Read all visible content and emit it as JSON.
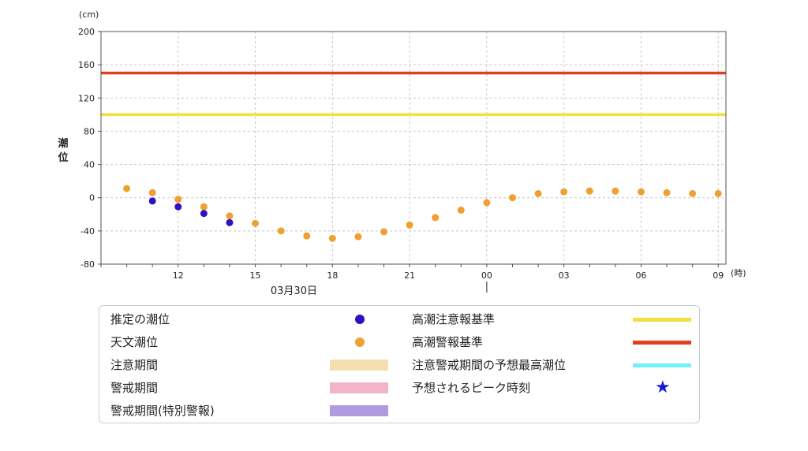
{
  "chart_data": {
    "type": "scatter",
    "y_unit": "(cm)",
    "x_unit": "(時)",
    "ylabel": "潮位",
    "ylim": [
      -80,
      200
    ],
    "yticks": [
      200,
      160,
      120,
      80,
      40,
      0,
      -40,
      -80
    ],
    "y_tick_labels": [
      "200",
      "160",
      "120",
      "80",
      "40",
      "0",
      "-40",
      "-80"
    ],
    "x_hours": [
      10,
      11,
      12,
      13,
      14,
      15,
      16,
      17,
      18,
      19,
      20,
      21,
      22,
      23,
      24,
      25,
      26,
      27,
      28,
      29,
      30,
      31,
      32,
      33
    ],
    "xlim": [
      9,
      33.3
    ],
    "x_ticks": [
      {
        "hour": 12,
        "label": "12"
      },
      {
        "hour": 15,
        "label": "15"
      },
      {
        "hour": 18,
        "label": "18"
      },
      {
        "hour": 21,
        "label": "21"
      },
      {
        "hour": 24,
        "label": "00"
      },
      {
        "hour": 27,
        "label": "03"
      },
      {
        "hour": 30,
        "label": "06"
      },
      {
        "hour": 33,
        "label": "09"
      }
    ],
    "date_label": "03月30日",
    "date_hour": 16.5,
    "series": [
      {
        "name": "天文潮位",
        "color": "#f0a030",
        "x": [
          10,
          11,
          12,
          13,
          14,
          15,
          16,
          17,
          18,
          19,
          20,
          21,
          22,
          23,
          24,
          25,
          26,
          27,
          28,
          29,
          30,
          31,
          32,
          33
        ],
        "values": [
          11,
          6,
          -2,
          -11,
          -22,
          -31,
          -40,
          -46,
          -49,
          -47,
          -41,
          -33,
          -24,
          -15,
          -6,
          0,
          5,
          7,
          8,
          8,
          7,
          6,
          5,
          5
        ]
      },
      {
        "name": "推定の潮位",
        "color": "#3010c0",
        "x": [
          11,
          12,
          13,
          14
        ],
        "values": [
          -4,
          -11,
          -19,
          -30
        ]
      }
    ],
    "reference_lines": [
      {
        "name": "高潮警報基準",
        "value": 150,
        "color": "#e04020"
      },
      {
        "name": "高潮注意報基準",
        "value": 100,
        "color": "#f0e040"
      }
    ]
  },
  "legend": {
    "left": [
      {
        "label": "推定の潮位",
        "kind": "dot",
        "color": "#3010c0"
      },
      {
        "label": "天文潮位",
        "kind": "dot",
        "color": "#f0a030"
      },
      {
        "label": "注意期間",
        "kind": "rect",
        "color": "#f5deb0"
      },
      {
        "label": "警戒期間",
        "kind": "rect",
        "color": "#f2b4c8"
      },
      {
        "label": "警戒期間(特別警報)",
        "kind": "rect",
        "color": "#b09ae0"
      }
    ],
    "right": [
      {
        "label": "高潮注意報基準",
        "kind": "line",
        "color": "#f0e040"
      },
      {
        "label": "高潮警報基準",
        "kind": "line",
        "color": "#e04020"
      },
      {
        "label": "注意警戒期間の予想最高潮位",
        "kind": "line",
        "color": "#70f0f8"
      },
      {
        "label": "予想されるピーク時刻",
        "kind": "star",
        "color": "#1a1adb"
      }
    ],
    "star_glyph": "★"
  }
}
